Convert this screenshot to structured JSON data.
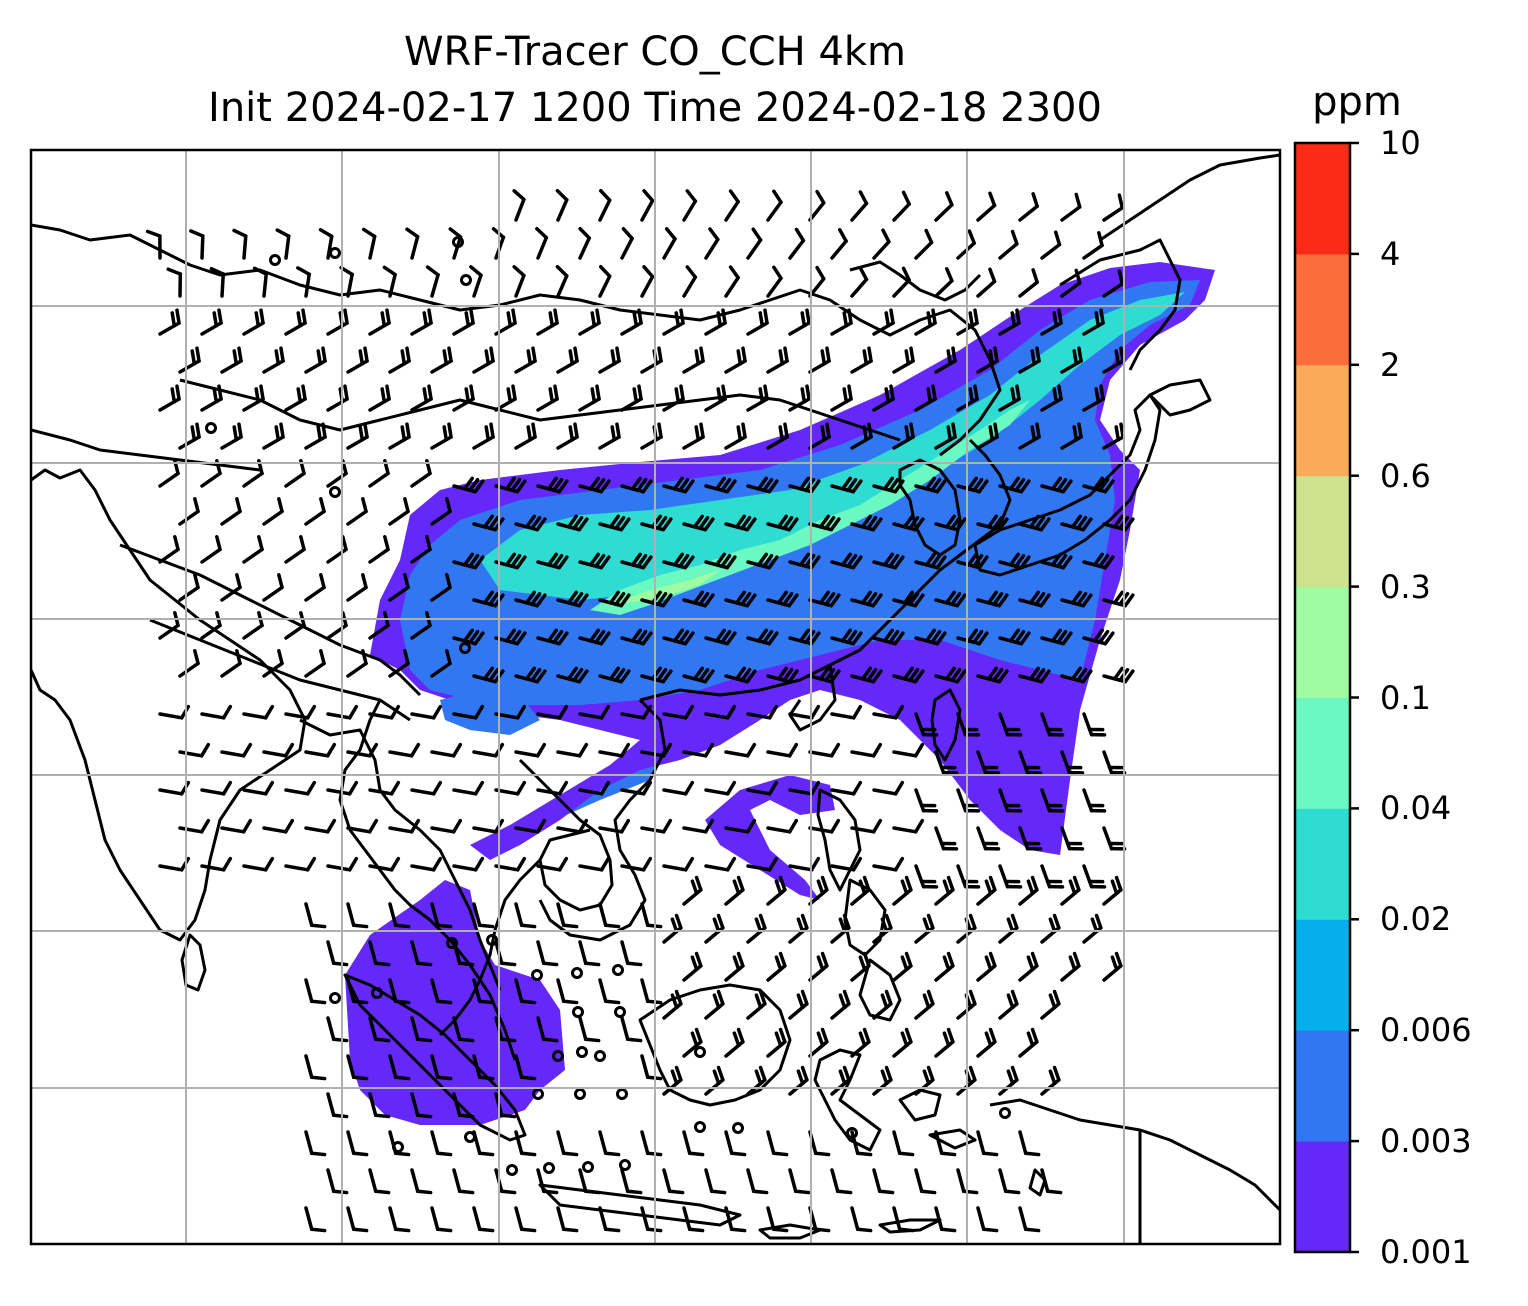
{
  "title": {
    "line1": "WRF-Tracer CO_CCH 4km",
    "line2": "Init 2024-02-17 1200 Time 2024-02-18 2300"
  },
  "colorbar": {
    "unit": "ppm",
    "levels": [
      "0.001",
      "0.003",
      "0.006",
      "0.02",
      "0.04",
      "0.1",
      "0.3",
      "0.6",
      "2",
      "4",
      "10"
    ],
    "colors": [
      "#6428f8",
      "#3277f2",
      "#05b0ea",
      "#2fdcd2",
      "#6cf8c1",
      "#a0fca0",
      "#cee18c",
      "#fbaa5c",
      "#fb6e3c",
      "#fb2a16"
    ]
  },
  "map": {
    "grid": true,
    "wind_barbs": true,
    "plume_colors": {
      "outer": "#6428f8",
      "low": "#3277f2",
      "mid": "#2fdcd2",
      "high": "#6cf8c1",
      "peak": "#a0fca0"
    }
  }
}
